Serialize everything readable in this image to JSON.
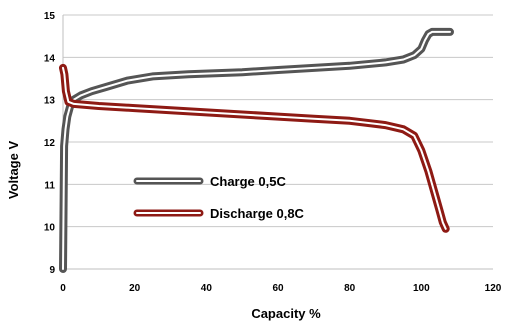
{
  "chart_data": {
    "type": "line",
    "xlabel": "Capacity %",
    "ylabel": "Voltage V",
    "xlim": [
      0,
      120
    ],
    "ylim": [
      9,
      15
    ],
    "x_ticks": [
      "0",
      "20",
      "40",
      "60",
      "80",
      "100",
      "120"
    ],
    "y_ticks": [
      "9",
      "10",
      "11",
      "12",
      "13",
      "14",
      "15"
    ],
    "grid": "horizontal",
    "legend_position": "center-left",
    "series": [
      {
        "name": "Charge 0,5C",
        "color": "#555555",
        "x": [
          0,
          0.3,
          0.7,
          1.2,
          2,
          3,
          5,
          8,
          12,
          18,
          25,
          35,
          50,
          60,
          70,
          80,
          90,
          95,
          98,
          100,
          101,
          102,
          103,
          105,
          108
        ],
        "y": [
          9.0,
          11.9,
          12.3,
          12.6,
          12.85,
          13.0,
          13.1,
          13.2,
          13.3,
          13.45,
          13.55,
          13.6,
          13.65,
          13.7,
          13.75,
          13.8,
          13.88,
          13.95,
          14.05,
          14.2,
          14.4,
          14.55,
          14.6,
          14.6,
          14.6
        ]
      },
      {
        "name": "Discharge 0,8C",
        "color": "#8e1a14",
        "x": [
          0,
          0.4,
          0.8,
          1.5,
          3,
          10,
          20,
          30,
          40,
          50,
          60,
          70,
          80,
          90,
          95,
          98,
          100,
          102,
          103,
          104,
          105,
          106,
          106.8
        ],
        "y": [
          13.75,
          13.6,
          13.2,
          12.95,
          12.9,
          12.85,
          12.8,
          12.75,
          12.7,
          12.65,
          12.6,
          12.55,
          12.5,
          12.4,
          12.3,
          12.15,
          11.8,
          11.3,
          11.0,
          10.7,
          10.4,
          10.1,
          9.95
        ]
      }
    ]
  }
}
